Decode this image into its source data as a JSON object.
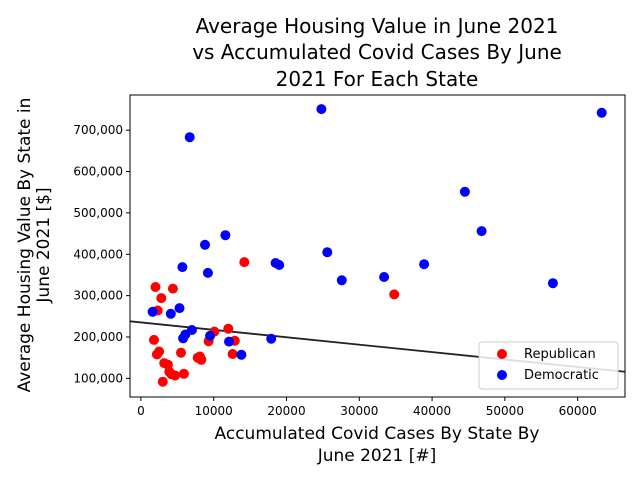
{
  "chart_data": {
    "type": "scatter",
    "title_lines": [
      "Average Housing Value in June 2021",
      "vs Accumulated Covid Cases By June",
      "2021 For Each State"
    ],
    "xlabel_lines": [
      "Accumulated Covid Cases By State By",
      "June 2021 [#]"
    ],
    "ylabel_lines": [
      "Average Housing Value By State in",
      "June 2021 [$]"
    ],
    "xlim": [
      -1500,
      66500
    ],
    "ylim": [
      55000,
      785000
    ],
    "xticks": [
      0,
      10000,
      20000,
      30000,
      40000,
      50000,
      60000
    ],
    "xtick_labels": [
      "0",
      "10000",
      "20000",
      "30000",
      "40000",
      "50000",
      "60000"
    ],
    "yticks": [
      100000,
      200000,
      300000,
      400000,
      500000,
      600000,
      700000
    ],
    "ytick_labels": [
      "100,000",
      "200,000",
      "300,000",
      "400,000",
      "500,000",
      "600,000",
      "700,000"
    ],
    "grid": false,
    "legend_position": "lower-right",
    "trendline": {
      "x": [
        -1500,
        66500
      ],
      "y": [
        238000,
        116000
      ],
      "color": "#222222"
    },
    "series": [
      {
        "name": "Republican",
        "color": "#ff0000",
        "points": [
          [
            1800,
            193000
          ],
          [
            2000,
            321000
          ],
          [
            2200,
            158000
          ],
          [
            2300,
            264000
          ],
          [
            2500,
            165000
          ],
          [
            2800,
            294000
          ],
          [
            3000,
            92000
          ],
          [
            3200,
            137000
          ],
          [
            3700,
            133000
          ],
          [
            3900,
            116000
          ],
          [
            4200,
            110000
          ],
          [
            4400,
            317000
          ],
          [
            4700,
            107000
          ],
          [
            5500,
            162000
          ],
          [
            5900,
            111000
          ],
          [
            7800,
            150000
          ],
          [
            8100,
            153000
          ],
          [
            8300,
            145000
          ],
          [
            9300,
            190000
          ],
          [
            10100,
            213000
          ],
          [
            12000,
            220000
          ],
          [
            12600,
            159000
          ],
          [
            12900,
            191000
          ],
          [
            14200,
            381000
          ],
          [
            34800,
            303000
          ]
        ]
      },
      {
        "name": "Democratic",
        "color": "#0000ff",
        "points": [
          [
            1600,
            261000
          ],
          [
            4100,
            256000
          ],
          [
            5300,
            270000
          ],
          [
            5700,
            369000
          ],
          [
            5800,
            197000
          ],
          [
            6100,
            206000
          ],
          [
            6700,
            683000
          ],
          [
            7000,
            217000
          ],
          [
            8800,
            423000
          ],
          [
            9200,
            355000
          ],
          [
            9500,
            203000
          ],
          [
            11600,
            446000
          ],
          [
            12100,
            189000
          ],
          [
            13800,
            157000
          ],
          [
            17900,
            196000
          ],
          [
            18500,
            379000
          ],
          [
            19000,
            374000
          ],
          [
            24800,
            751000
          ],
          [
            25600,
            405000
          ],
          [
            27600,
            337000
          ],
          [
            33400,
            345000
          ],
          [
            38900,
            376000
          ],
          [
            44500,
            551000
          ],
          [
            46800,
            456000
          ],
          [
            56600,
            330000
          ],
          [
            63300,
            742000
          ]
        ]
      }
    ]
  }
}
